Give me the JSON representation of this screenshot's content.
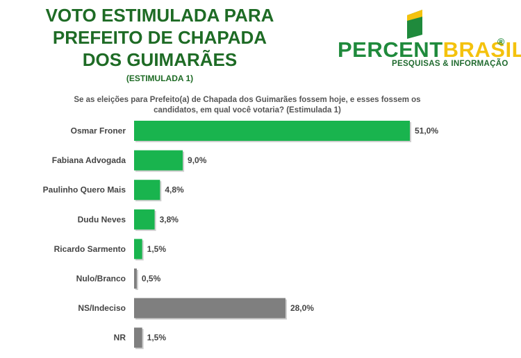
{
  "header": {
    "title_lines": [
      "VOTO ESTIMULADA PARA",
      "PREFEITO DE  CHAPADA",
      "DOS GUIMARÃES"
    ],
    "subtitle": "(ESTIMULADA 1)"
  },
  "logo": {
    "text_part1": "PERCENT",
    "text_part2": "BRASIL",
    "registered": "®",
    "tagline": "PESQUISAS & INFORMAÇÃO",
    "colors": {
      "green": "#1f8a3c",
      "yellow": "#f4c20d"
    }
  },
  "question": {
    "line1": "Se as eleições para Prefeito(a) de Chapada dos Guimarães fossem hoje, e esses fossem os",
    "line2": "candidatos, em qual você votaria? (Estimulada 1)"
  },
  "chart_data": {
    "type": "bar",
    "orientation": "horizontal",
    "categories": [
      "Osmar Froner",
      "Fabiana Advogada",
      "Paulinho Quero Mais",
      "Dudu Neves",
      "Ricardo Sarmento",
      "Nulo/Branco",
      "NS/Indeciso",
      "NR"
    ],
    "values": [
      51.0,
      9.0,
      4.8,
      3.8,
      1.5,
      0.5,
      28.0,
      1.5
    ],
    "value_labels": [
      "51,0%",
      "9,0%",
      "4,8%",
      "3,8%",
      "1,5%",
      "0,5%",
      "28,0%",
      "1,5%"
    ],
    "bar_colors": [
      "#19b44e",
      "#19b44e",
      "#19b44e",
      "#19b44e",
      "#19b44e",
      "#7f7f7f",
      "#7f7f7f",
      "#7f7f7f"
    ],
    "xlim": [
      0,
      51
    ],
    "grid": false,
    "legend": "none"
  }
}
